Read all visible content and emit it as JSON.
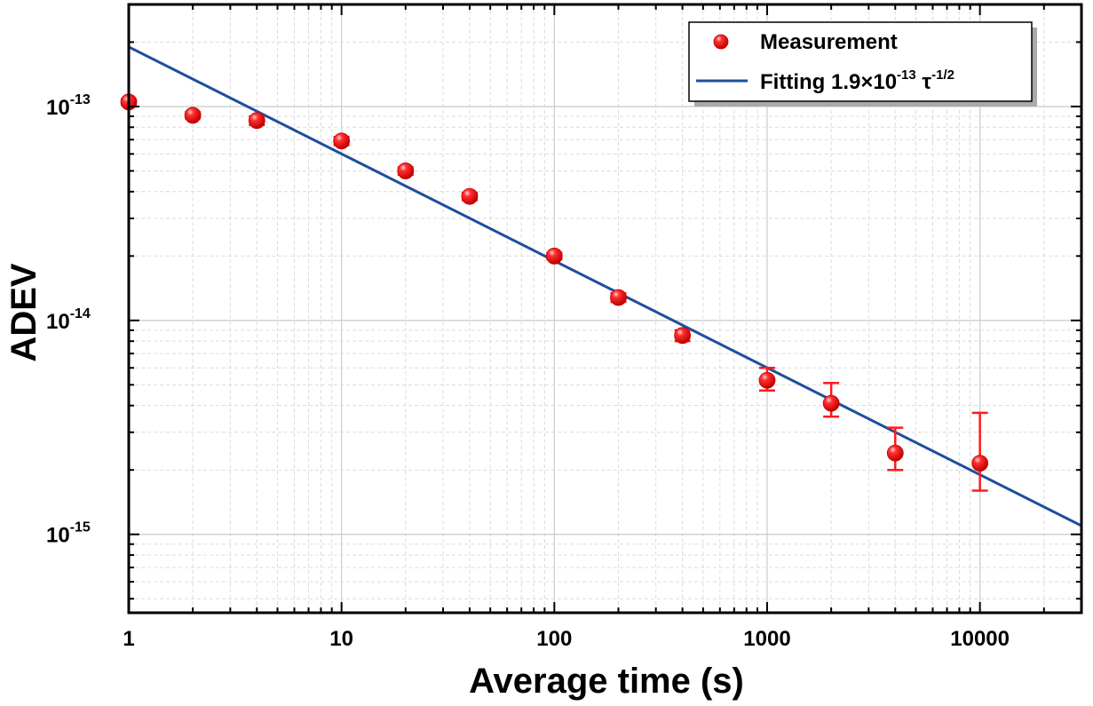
{
  "chart_data": {
    "type": "scatter",
    "x_scale": "log",
    "y_scale": "log",
    "xlim": [
      1,
      30000
    ],
    "ylim": [
      4.3e-16,
      3e-13
    ],
    "xlabel": "Average time (s)",
    "ylabel": "ADEV",
    "x_ticks": [
      {
        "value": 1,
        "label": "1"
      },
      {
        "value": 10,
        "label": "10"
      },
      {
        "value": 100,
        "label": "100"
      },
      {
        "value": 1000,
        "label": "1000"
      },
      {
        "value": 10000,
        "label": "10000"
      }
    ],
    "y_ticks": [
      {
        "value": 1e-13,
        "base": "10",
        "exp": "-13"
      },
      {
        "value": 1e-14,
        "base": "10",
        "exp": "-14"
      },
      {
        "value": 1e-15,
        "base": "10",
        "exp": "-15"
      }
    ],
    "grid": true,
    "legend_position": "top-right",
    "series": [
      {
        "name": "Measurement",
        "kind": "points",
        "color": "#ff1a1a",
        "points": [
          {
            "x": 1,
            "y": 1.05e-13,
            "err_lo": 1.02e-13,
            "err_hi": 1.08e-13
          },
          {
            "x": 2,
            "y": 9.1e-14,
            "err_lo": 8.8e-14,
            "err_hi": 9.4e-14
          },
          {
            "x": 4,
            "y": 8.6e-14,
            "err_lo": 8.2e-14,
            "err_hi": 9e-14
          },
          {
            "x": 10,
            "y": 6.9e-14,
            "err_lo": 6.6e-14,
            "err_hi": 7.2e-14
          },
          {
            "x": 20,
            "y": 5e-14,
            "err_lo": 4.8e-14,
            "err_hi": 5.2e-14
          },
          {
            "x": 40,
            "y": 3.8e-14,
            "err_lo": 3.65e-14,
            "err_hi": 3.95e-14
          },
          {
            "x": 100,
            "y": 2e-14,
            "err_lo": 1.93e-14,
            "err_hi": 2.07e-14
          },
          {
            "x": 200,
            "y": 1.28e-14,
            "err_lo": 1.22e-14,
            "err_hi": 1.34e-14
          },
          {
            "x": 400,
            "y": 8.5e-15,
            "err_lo": 8e-15,
            "err_hi": 9e-15
          },
          {
            "x": 1000,
            "y": 5.25e-15,
            "err_lo": 4.7e-15,
            "err_hi": 6e-15
          },
          {
            "x": 2000,
            "y": 4.1e-15,
            "err_lo": 3.55e-15,
            "err_hi": 5.1e-15
          },
          {
            "x": 4000,
            "y": 2.4e-15,
            "err_lo": 2e-15,
            "err_hi": 3.15e-15
          },
          {
            "x": 10000,
            "y": 2.15e-15,
            "err_lo": 1.6e-15,
            "err_hi": 3.7e-15
          }
        ]
      },
      {
        "name_parts": {
          "prefix": "Fitting 1.9×10",
          "exp1": "-13",
          "mid": " τ",
          "exp2": "-1/2"
        },
        "kind": "line",
        "color": "#1f4e9c",
        "coefficient": 1.9e-13,
        "exponent": -0.5,
        "x_range": [
          1,
          30000
        ]
      }
    ]
  }
}
